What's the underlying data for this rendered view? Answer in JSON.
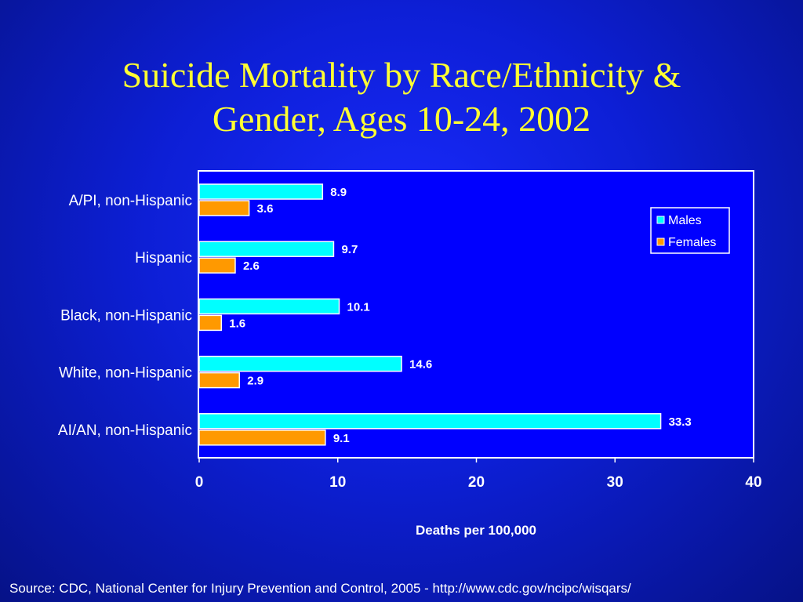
{
  "slide": {
    "title_line1": "Suicide Mortality by Race/Ethnicity &",
    "title_line2": "Gender, Ages 10-24, 2002",
    "source": "Source: CDC, National Center for Injury Prevention and Control, 2005 - http://www.cdc.gov/ncipc/wisqars/"
  },
  "chart_data": {
    "type": "bar",
    "orientation": "horizontal",
    "categories": [
      "A/PI, non-Hispanic",
      "Hispanic",
      "Black, non-Hispanic",
      "White, non-Hispanic",
      "AI/AN, non-Hispanic"
    ],
    "series": [
      {
        "name": "Males",
        "values": [
          8.9,
          9.7,
          10.1,
          14.6,
          33.3
        ],
        "color": "#00ffff"
      },
      {
        "name": "Females",
        "values": [
          3.6,
          2.6,
          1.6,
          2.9,
          9.1
        ],
        "color": "#ff9900"
      }
    ],
    "value_labels": {
      "Males": [
        "8.9",
        "9.7",
        "10.1",
        "14.6",
        "33.3"
      ],
      "Females": [
        "3.6",
        "2.6",
        "1.6",
        "2.9",
        "9.1"
      ]
    },
    "xlabel": "Deaths per 100,000",
    "xlim": [
      0,
      40
    ],
    "xticks": [
      0,
      10,
      20,
      30,
      40
    ],
    "legend_position": "top-right",
    "grid": false
  }
}
